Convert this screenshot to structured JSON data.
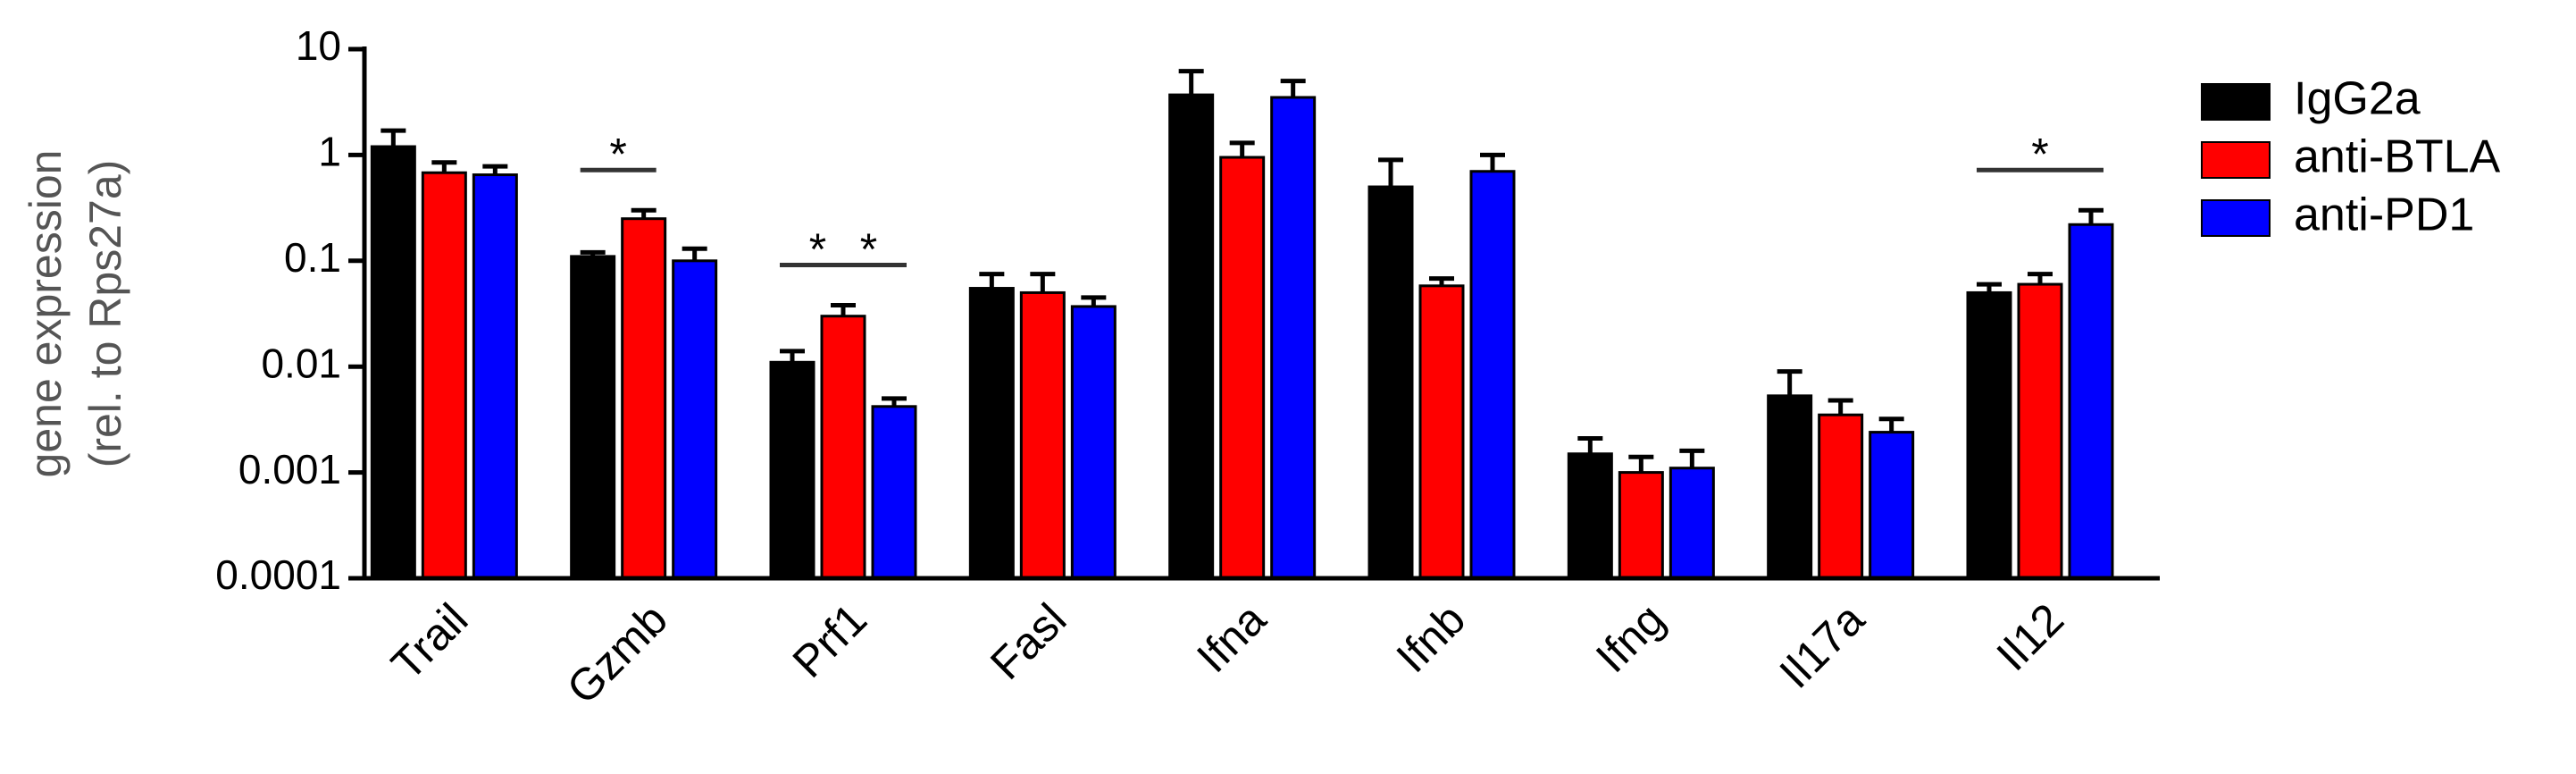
{
  "chart_data": {
    "type": "bar",
    "log_scale": true,
    "y_label": [
      "gene expression",
      "(rel. to Rps27a)"
    ],
    "categories": [
      "Trail",
      "Gzmb",
      "Prf1",
      "Fasl",
      "Ifna",
      "Ifnb",
      "Ifng",
      "Il17a",
      "Il12"
    ],
    "series": [
      {
        "name": "IgG2a",
        "color": "#000000",
        "values": [
          1.2,
          0.11,
          0.011,
          0.055,
          3.7,
          0.5,
          0.0015,
          0.0053,
          0.05
        ],
        "errors": [
          0.5,
          0.01,
          0.003,
          0.02,
          2.5,
          0.4,
          0.0006,
          0.0037,
          0.01
        ]
      },
      {
        "name": "anti-BTLA",
        "color": "#ff0000",
        "values": [
          0.68,
          0.25,
          0.03,
          0.05,
          0.95,
          0.058,
          0.001,
          0.0035,
          0.06
        ],
        "errors": [
          0.17,
          0.05,
          0.008,
          0.025,
          0.35,
          0.01,
          0.0004,
          0.0013,
          0.015
        ]
      },
      {
        "name": "anti-PD1",
        "color": "#0000ff",
        "values": [
          0.65,
          0.1,
          0.0042,
          0.037,
          3.5,
          0.7,
          0.0011,
          0.0024,
          0.22
        ],
        "errors": [
          0.13,
          0.03,
          0.0008,
          0.008,
          1.5,
          0.3,
          0.0005,
          0.0008,
          0.08
        ]
      }
    ],
    "annotations": [
      {
        "text": "*",
        "category": 1,
        "from": 0,
        "to": 1
      },
      {
        "text": "*",
        "category": 2,
        "from": 0,
        "to": 1
      },
      {
        "text": "*",
        "category": 2,
        "from": 1,
        "to": 2
      },
      {
        "text": "*",
        "category": 8,
        "from": 0,
        "to": 2
      }
    ],
    "ylim": [
      0.0001,
      10
    ],
    "yticks": [
      0.0001,
      0.001,
      0.01,
      0.1,
      1,
      10
    ],
    "legend": "right"
  }
}
